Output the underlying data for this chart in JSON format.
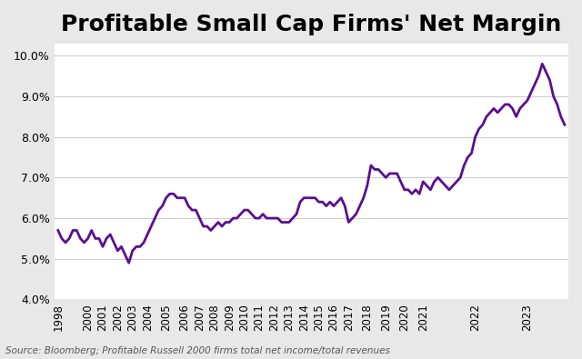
{
  "title": "Profitable Small Cap Firms' Net Margin",
  "source_text": "Source: Bloomberg; Profitable Russell 2000 firms total net income/total revenues",
  "line_color": "#5B0E91",
  "background_color": "#E8E8E8",
  "plot_bg_color": "#FFFFFF",
  "ylim": [
    0.04,
    0.103
  ],
  "yticks": [
    0.04,
    0.05,
    0.06,
    0.07,
    0.08,
    0.09,
    0.1
  ],
  "title_fontsize": 18,
  "line_width": 2.0,
  "x_labels": [
    "1998",
    "2000",
    "2001",
    "2002",
    "2003",
    "2004",
    "2005",
    "2006",
    "2007",
    "2008",
    "2009",
    "2010",
    "2011",
    "2012",
    "2013",
    "2014",
    "2015",
    "2016",
    "2017",
    "2018",
    "2019",
    "2020",
    "2021",
    "2022",
    "2023"
  ],
  "data": [
    [
      0,
      0.057
    ],
    [
      1,
      0.055
    ],
    [
      2,
      0.054
    ],
    [
      3,
      0.055
    ],
    [
      4,
      0.057
    ],
    [
      5,
      0.057
    ],
    [
      6,
      0.055
    ],
    [
      7,
      0.054
    ],
    [
      8,
      0.055
    ],
    [
      9,
      0.057
    ],
    [
      10,
      0.055
    ],
    [
      11,
      0.055
    ],
    [
      12,
      0.053
    ],
    [
      13,
      0.055
    ],
    [
      14,
      0.056
    ],
    [
      15,
      0.054
    ],
    [
      16,
      0.052
    ],
    [
      17,
      0.053
    ],
    [
      18,
      0.051
    ],
    [
      19,
      0.049
    ],
    [
      20,
      0.052
    ],
    [
      21,
      0.053
    ],
    [
      22,
      0.053
    ],
    [
      23,
      0.054
    ],
    [
      24,
      0.056
    ],
    [
      25,
      0.058
    ],
    [
      26,
      0.06
    ],
    [
      27,
      0.062
    ],
    [
      28,
      0.063
    ],
    [
      29,
      0.065
    ],
    [
      30,
      0.066
    ],
    [
      31,
      0.066
    ],
    [
      32,
      0.065
    ],
    [
      33,
      0.065
    ],
    [
      34,
      0.065
    ],
    [
      35,
      0.063
    ],
    [
      36,
      0.062
    ],
    [
      37,
      0.062
    ],
    [
      38,
      0.06
    ],
    [
      39,
      0.058
    ],
    [
      40,
      0.058
    ],
    [
      41,
      0.057
    ],
    [
      42,
      0.058
    ],
    [
      43,
      0.059
    ],
    [
      44,
      0.058
    ],
    [
      45,
      0.059
    ],
    [
      46,
      0.059
    ],
    [
      47,
      0.06
    ],
    [
      48,
      0.06
    ],
    [
      49,
      0.061
    ],
    [
      50,
      0.062
    ],
    [
      51,
      0.062
    ],
    [
      52,
      0.061
    ],
    [
      53,
      0.06
    ],
    [
      54,
      0.06
    ],
    [
      55,
      0.061
    ],
    [
      56,
      0.06
    ],
    [
      57,
      0.06
    ],
    [
      58,
      0.06
    ],
    [
      59,
      0.06
    ],
    [
      60,
      0.059
    ],
    [
      61,
      0.059
    ],
    [
      62,
      0.059
    ],
    [
      63,
      0.06
    ],
    [
      64,
      0.061
    ],
    [
      65,
      0.064
    ],
    [
      66,
      0.065
    ],
    [
      67,
      0.065
    ],
    [
      68,
      0.065
    ],
    [
      69,
      0.065
    ],
    [
      70,
      0.064
    ],
    [
      71,
      0.064
    ],
    [
      72,
      0.063
    ],
    [
      73,
      0.064
    ],
    [
      74,
      0.063
    ],
    [
      75,
      0.064
    ],
    [
      76,
      0.065
    ],
    [
      77,
      0.063
    ],
    [
      78,
      0.059
    ],
    [
      79,
      0.06
    ],
    [
      80,
      0.061
    ],
    [
      81,
      0.063
    ],
    [
      82,
      0.065
    ],
    [
      83,
      0.068
    ],
    [
      84,
      0.073
    ],
    [
      85,
      0.072
    ],
    [
      86,
      0.072
    ],
    [
      87,
      0.071
    ],
    [
      88,
      0.07
    ],
    [
      89,
      0.071
    ],
    [
      90,
      0.071
    ],
    [
      91,
      0.071
    ],
    [
      92,
      0.069
    ],
    [
      93,
      0.067
    ],
    [
      94,
      0.067
    ],
    [
      95,
      0.066
    ],
    [
      96,
      0.067
    ],
    [
      97,
      0.066
    ],
    [
      98,
      0.069
    ],
    [
      99,
      0.068
    ],
    [
      100,
      0.067
    ],
    [
      101,
      0.069
    ],
    [
      102,
      0.07
    ],
    [
      103,
      0.069
    ],
    [
      104,
      0.068
    ],
    [
      105,
      0.067
    ],
    [
      106,
      0.068
    ],
    [
      107,
      0.069
    ],
    [
      108,
      0.07
    ],
    [
      109,
      0.073
    ],
    [
      110,
      0.075
    ],
    [
      111,
      0.076
    ],
    [
      112,
      0.08
    ],
    [
      113,
      0.082
    ],
    [
      114,
      0.083
    ],
    [
      115,
      0.085
    ],
    [
      116,
      0.086
    ],
    [
      117,
      0.087
    ],
    [
      118,
      0.086
    ],
    [
      119,
      0.087
    ],
    [
      120,
      0.088
    ],
    [
      121,
      0.088
    ],
    [
      122,
      0.087
    ],
    [
      123,
      0.085
    ],
    [
      124,
      0.087
    ],
    [
      125,
      0.088
    ],
    [
      126,
      0.089
    ],
    [
      127,
      0.091
    ],
    [
      128,
      0.093
    ],
    [
      129,
      0.095
    ],
    [
      130,
      0.098
    ],
    [
      131,
      0.096
    ],
    [
      132,
      0.094
    ],
    [
      133,
      0.09
    ],
    [
      134,
      0.088
    ],
    [
      135,
      0.085
    ],
    [
      136,
      0.083
    ]
  ],
  "x_tick_positions": [
    0,
    8,
    12,
    16,
    20,
    24,
    29,
    34,
    38,
    42,
    46,
    50,
    54,
    58,
    62,
    66,
    70,
    74,
    78,
    83,
    88,
    93,
    98,
    112,
    126
  ],
  "x_tick_labels": [
    "1998",
    "2000",
    "2001",
    "2002",
    "2003",
    "2004",
    "2005",
    "2006",
    "2007",
    "2008",
    "2009",
    "2010",
    "2011",
    "2012",
    "2013",
    "2014",
    "2015",
    "2016",
    "2017",
    "2018",
    "2019",
    "2020",
    "2021",
    "2022",
    "2023"
  ]
}
